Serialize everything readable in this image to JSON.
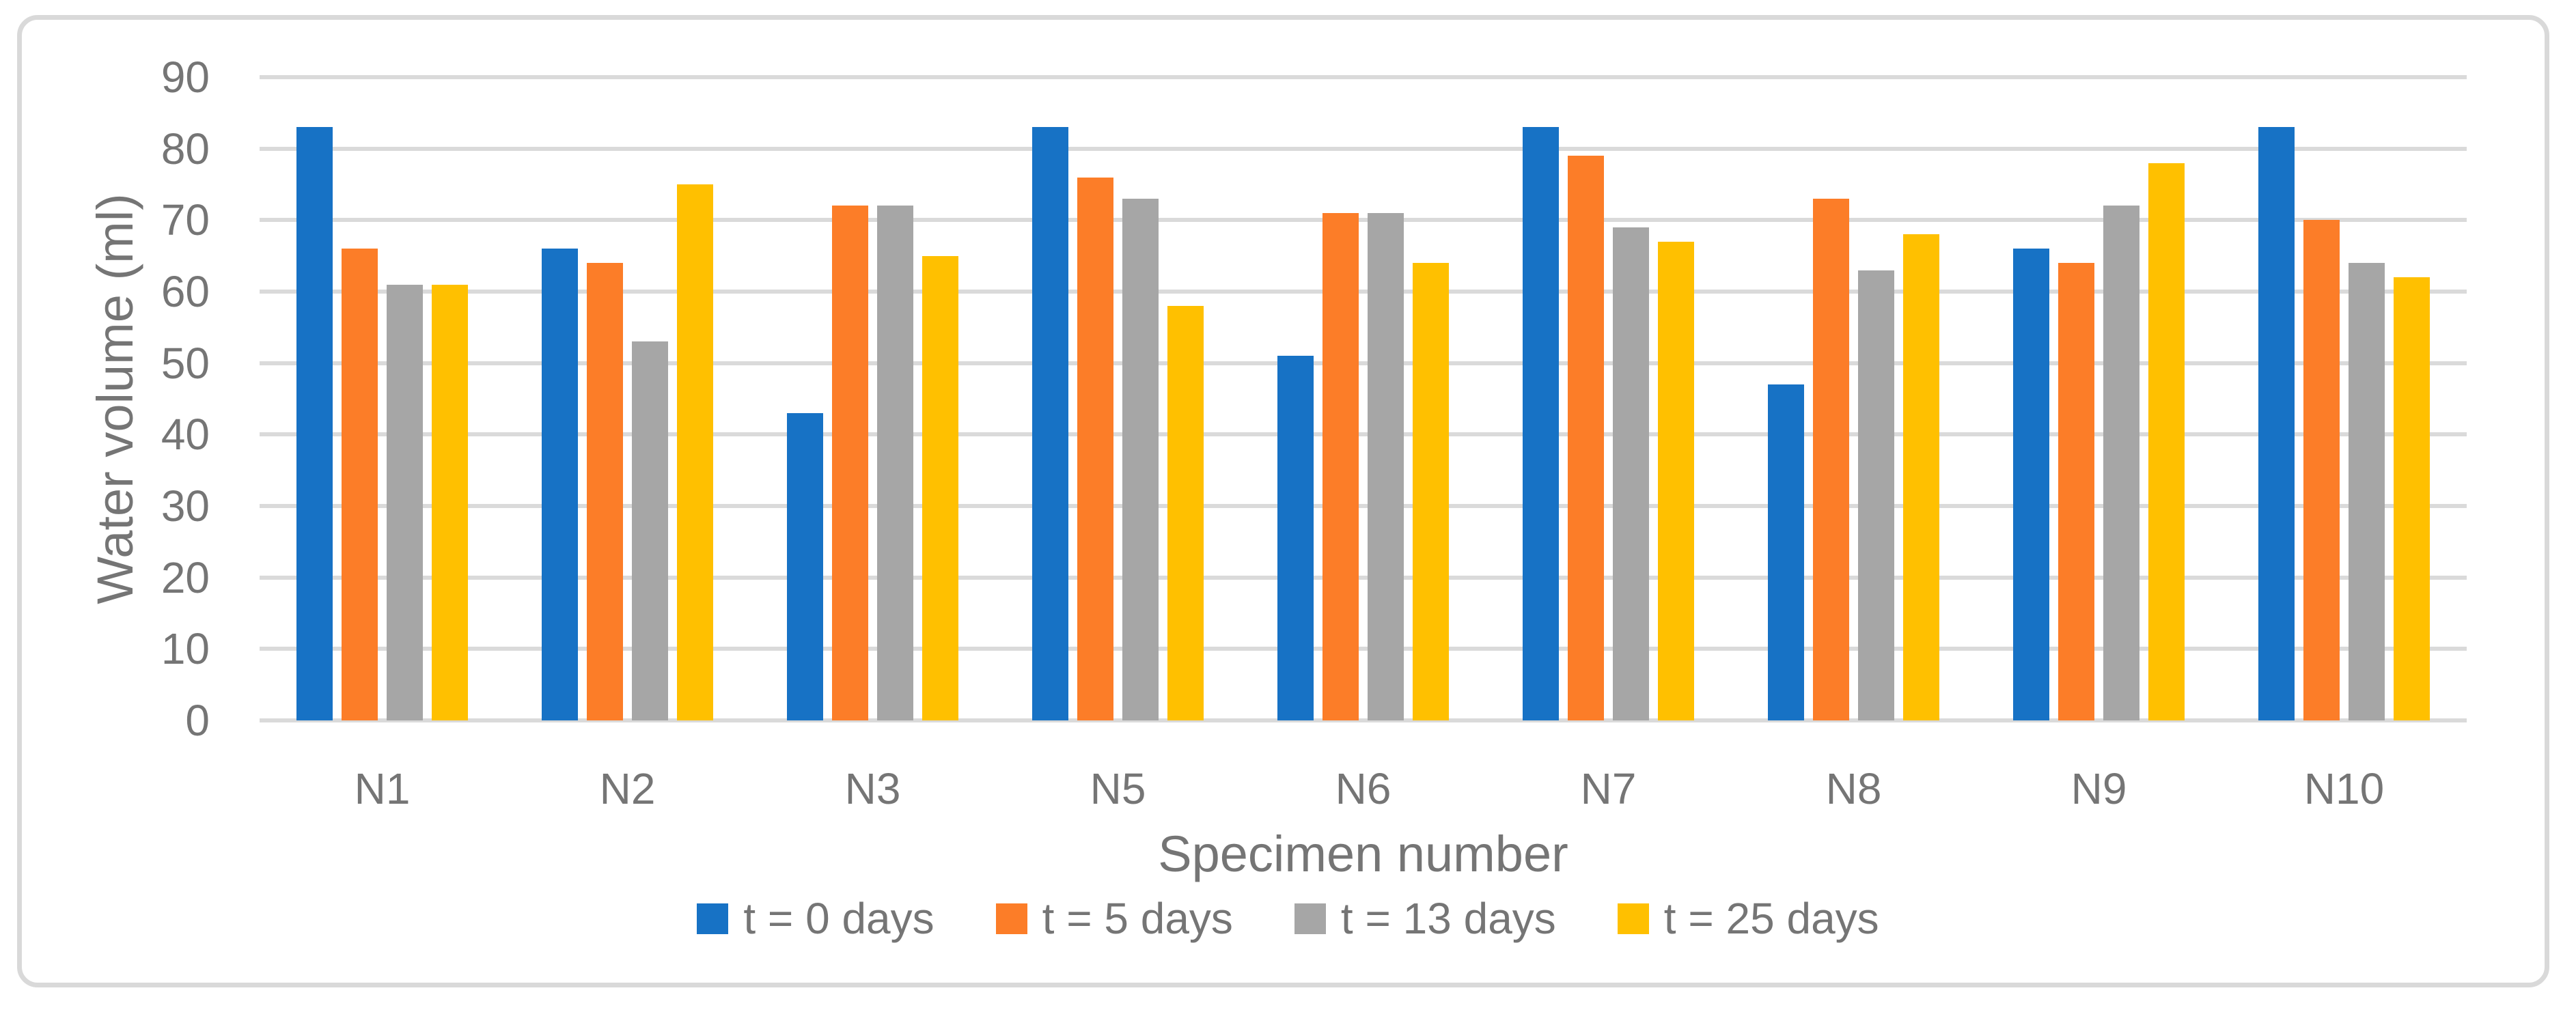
{
  "figure": {
    "background": "#ffffff",
    "border_color": "#d9d9d9",
    "grid_color": "#dadada",
    "text_color": "#757575"
  },
  "chart_data": {
    "type": "bar",
    "title": "",
    "xlabel": "Specimen number",
    "ylabel": "Water volume (ml)",
    "categories": [
      "N1",
      "N2",
      "N3",
      "N5",
      "N6",
      "N7",
      "N8",
      "N9",
      "N10"
    ],
    "series": [
      {
        "name": "t = 0 days",
        "color": "#1772c5",
        "values": [
          83,
          66,
          43,
          83,
          51,
          83,
          47,
          66,
          83
        ]
      },
      {
        "name": "t = 5 days",
        "color": "#fc7d28",
        "values": [
          66,
          64,
          72,
          76,
          71,
          79,
          73,
          64,
          70
        ]
      },
      {
        "name": "t = 13 days",
        "color": "#a6a6a6",
        "values": [
          61,
          53,
          72,
          73,
          71,
          69,
          63,
          72,
          64
        ]
      },
      {
        "name": "t = 25 days",
        "color": "#ffc000",
        "values": [
          61,
          75,
          65,
          58,
          64,
          67,
          68,
          78,
          62
        ]
      }
    ],
    "ylim": [
      0,
      90
    ],
    "yticks": [
      0,
      10,
      20,
      30,
      40,
      50,
      60,
      70,
      80,
      90
    ],
    "grid": true,
    "legend_position": "bottom"
  }
}
